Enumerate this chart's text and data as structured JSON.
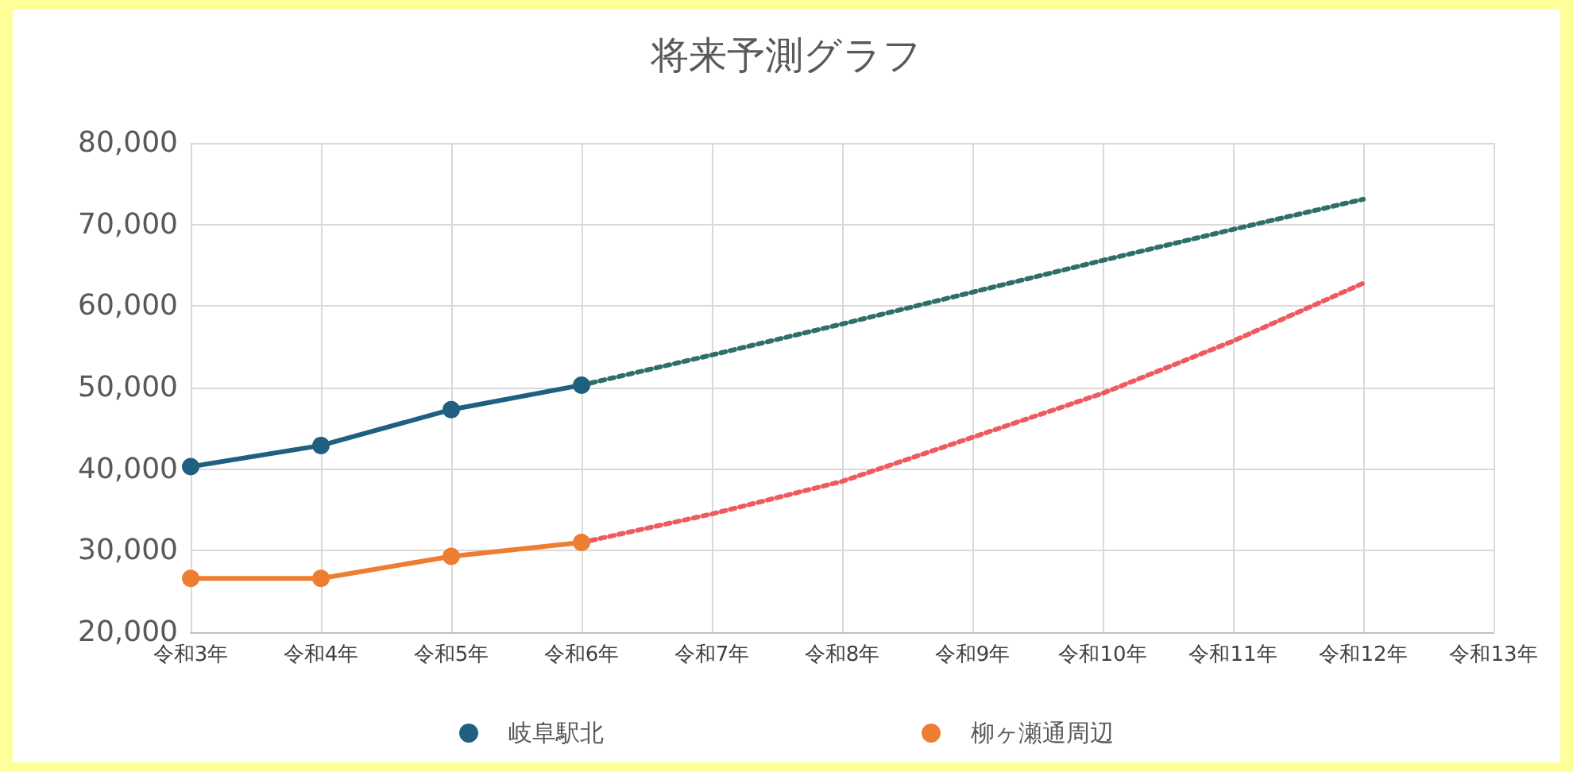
{
  "chart_data": {
    "type": "line",
    "title": "将来予測グラフ",
    "categories": [
      "令和3年",
      "令和4年",
      "令和5年",
      "令和6年",
      "令和7年",
      "令和8年",
      "令和9年",
      "令和10年",
      "令和11年",
      "令和12年",
      "令和13年"
    ],
    "series": [
      {
        "name": "岐阜駅北",
        "color": "#1f5f7f",
        "marker": "circle",
        "line_style": "solid",
        "values": [
          40300,
          42900,
          47300,
          50300,
          null,
          null,
          null,
          null,
          null,
          null,
          null
        ]
      },
      {
        "name": "柳ヶ瀬通周辺",
        "color": "#ed7d31",
        "marker": "circle",
        "line_style": "solid",
        "values": [
          26600,
          26600,
          29300,
          31000,
          null,
          null,
          null,
          null,
          null,
          null,
          null
        ]
      },
      {
        "color": "#2f6f6a",
        "marker": "none",
        "line_style": "dotted",
        "values": [
          null,
          null,
          null,
          50300,
          54000,
          57800,
          61700,
          65600,
          69400,
          73100,
          null
        ]
      },
      {
        "color": "#ee5a5f",
        "marker": "none",
        "line_style": "dotted",
        "values": [
          null,
          null,
          null,
          31000,
          34500,
          38500,
          43900,
          49300,
          55700,
          62800,
          null
        ]
      }
    ],
    "ylim": [
      20000,
      80000
    ],
    "yticks": [
      {
        "value": 20000,
        "label": "20,000"
      },
      {
        "value": 30000,
        "label": "30,000"
      },
      {
        "value": 40000,
        "label": "40,000"
      },
      {
        "value": 50000,
        "label": "50,000"
      },
      {
        "value": 60000,
        "label": "60,000"
      },
      {
        "value": 70000,
        "label": "70,000"
      },
      {
        "value": 80000,
        "label": "80,000"
      }
    ],
    "grid": true,
    "legend": "bottom"
  }
}
